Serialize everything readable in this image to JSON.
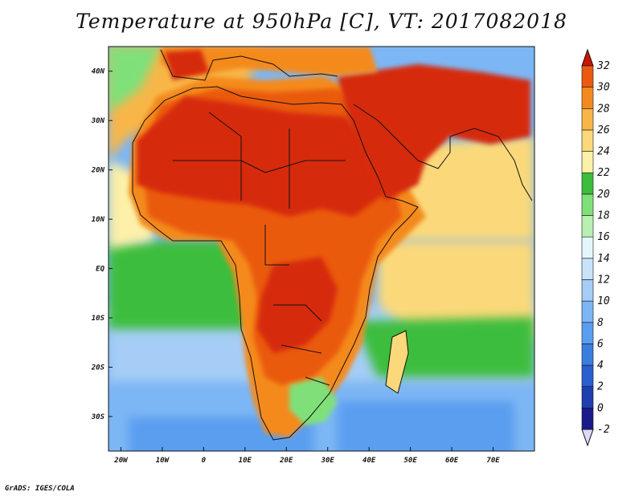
{
  "title": "Temperature at 950hPa [C], VT: 2017082018",
  "credit": "GrADS: IGES/COLA",
  "map": {
    "lon_range": [
      -23,
      80
    ],
    "lat_range": [
      -37,
      45
    ],
    "lat_ticks": [
      {
        "lat": 40,
        "label": "40N"
      },
      {
        "lat": 30,
        "label": "30N"
      },
      {
        "lat": 20,
        "label": "20N"
      },
      {
        "lat": 10,
        "label": "10N"
      },
      {
        "lat": 0,
        "label": "EQ"
      },
      {
        "lat": -10,
        "label": "10S"
      },
      {
        "lat": -20,
        "label": "20S"
      },
      {
        "lat": -30,
        "label": "30S"
      }
    ],
    "lon_ticks": [
      {
        "lon": -20,
        "label": "20W"
      },
      {
        "lon": -10,
        "label": "10W"
      },
      {
        "lon": 0,
        "label": "0"
      },
      {
        "lon": 10,
        "label": "10E"
      },
      {
        "lon": 20,
        "label": "20E"
      },
      {
        "lon": 30,
        "label": "30E"
      },
      {
        "lon": 40,
        "label": "40E"
      },
      {
        "lon": 50,
        "label": "50E"
      },
      {
        "lon": 60,
        "label": "60E"
      },
      {
        "lon": 70,
        "label": "70E"
      }
    ]
  },
  "colorbar": {
    "levels": [
      {
        "value": "-2",
        "color": "#1a1a8c"
      },
      {
        "value": "0",
        "color": "#1f3fb0"
      },
      {
        "value": "2",
        "color": "#2a5fd0"
      },
      {
        "value": "4",
        "color": "#3a7ee0"
      },
      {
        "value": "6",
        "color": "#5a9ef0"
      },
      {
        "value": "8",
        "color": "#7db6f4"
      },
      {
        "value": "10",
        "color": "#a5cdf6"
      },
      {
        "value": "12",
        "color": "#c7e4fa"
      },
      {
        "value": "14",
        "color": "#e4f7fd"
      },
      {
        "value": "16",
        "color": "#b7f0b0"
      },
      {
        "value": "18",
        "color": "#7fe07a"
      },
      {
        "value": "20",
        "color": "#3cbd3c"
      },
      {
        "value": "22",
        "color": "#fdf0a8"
      },
      {
        "value": "24",
        "color": "#fbd97a"
      },
      {
        "value": "26",
        "color": "#f8b648"
      },
      {
        "value": "28",
        "color": "#f48a1f"
      },
      {
        "value": "30",
        "color": "#ea5a10"
      },
      {
        "value": "32",
        "color": "#d62a0a"
      }
    ],
    "bottom_color": "#e0d8f8",
    "top_color": "#c8150a"
  },
  "colors": {
    "ocean_south": "#7db6f4",
    "ocean_deep": "#5a9ef0",
    "ocean_mid": "#a5cdf6",
    "ocean_pale": "#e4f7fd",
    "green_light": "#b7f0b0",
    "green_mid": "#7fe07a",
    "green_dark": "#3cbd3c",
    "yellow_pale": "#fdf0a8",
    "yellow": "#fbd97a",
    "orange_light": "#f8b648",
    "orange": "#f48a1f",
    "red_orange": "#ea5a10",
    "red": "#d62a0a"
  }
}
